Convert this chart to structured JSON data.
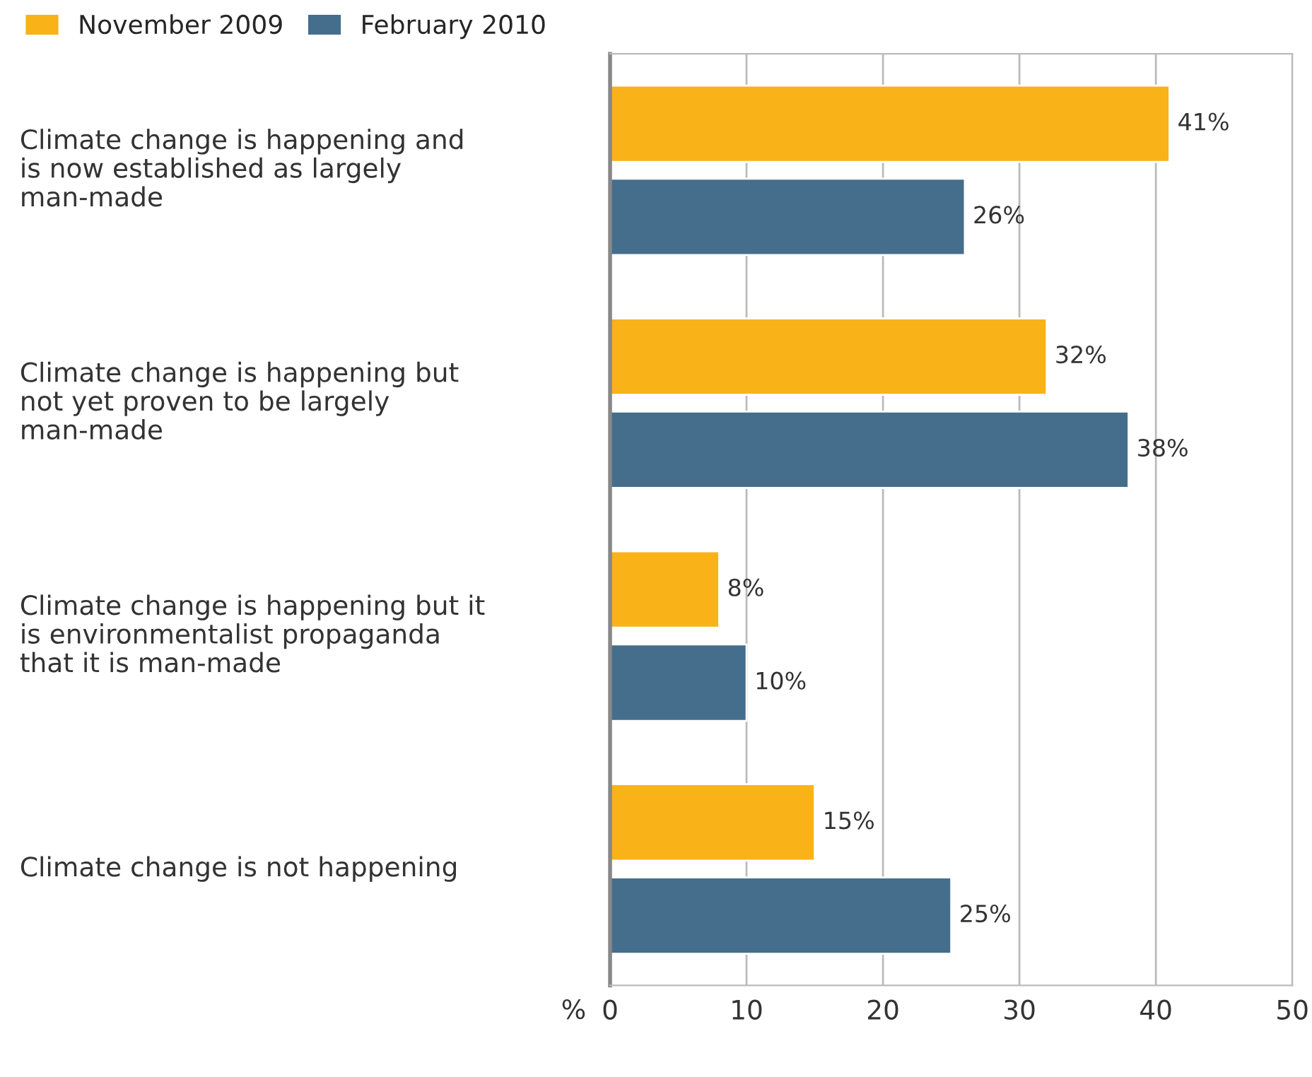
{
  "chart_data": {
    "type": "bar",
    "orientation": "horizontal",
    "categories": [
      "Climate change is happening and\nis now established as largely\nman-made",
      "Climate change is happening but\nnot yet proven to be largely\nman-made",
      "Climate change is happening but it\nis environmentalist propaganda\nthat it is man-made",
      "Climate change is not happening"
    ],
    "series": [
      {
        "name": "November 2009",
        "color": "#f9b218",
        "values": [
          41,
          32,
          8,
          15
        ],
        "value_labels": [
          "41%",
          "32%",
          "8%",
          "15%"
        ]
      },
      {
        "name": "February 2010",
        "color": "#456d8c",
        "values": [
          26,
          38,
          10,
          25
        ],
        "value_labels": [
          "26%",
          "38%",
          "10%",
          "25%"
        ]
      }
    ],
    "xlabel": "%",
    "xlim": [
      0,
      50
    ],
    "xticks": [
      0,
      10,
      20,
      30,
      40,
      50
    ],
    "grid": "x",
    "legend": "top left"
  }
}
